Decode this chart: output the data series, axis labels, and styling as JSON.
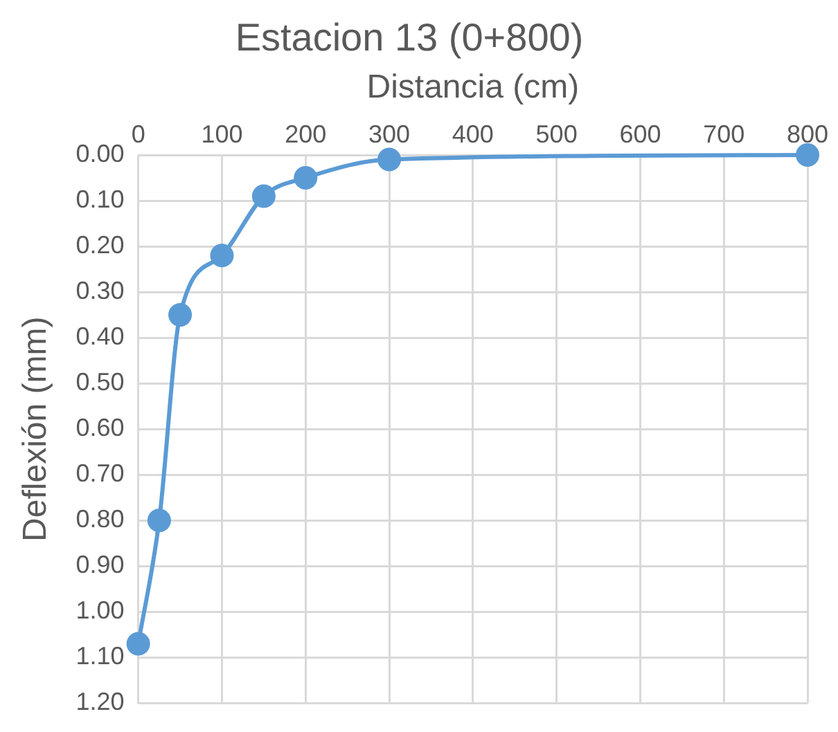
{
  "chart_data": {
    "type": "line",
    "title": "Estacion 13 (0+800)",
    "xlabel": "Distancia (cm)",
    "ylabel": "Deflexión (mm)",
    "x": [
      0,
      25,
      50,
      100,
      150,
      200,
      300,
      800
    ],
    "series": [
      {
        "color": "#5b9bd5",
        "values": [
          1.07,
          0.8,
          0.35,
          0.22,
          0.09,
          0.05,
          0.01,
          0.0
        ]
      }
    ],
    "xlim": [
      0,
      800
    ],
    "xticks": [
      0,
      100,
      200,
      300,
      400,
      500,
      600,
      700,
      800
    ],
    "ylim": [
      1.2,
      0
    ],
    "yticks": [
      {
        "value": 0,
        "label": "0.00"
      },
      {
        "value": 0.1,
        "label": "0.10"
      },
      {
        "value": 0.2,
        "label": "0.20"
      },
      {
        "value": 0.3,
        "label": "0.30"
      },
      {
        "value": 0.4,
        "label": "0.40"
      },
      {
        "value": 0.5,
        "label": "0.50"
      },
      {
        "value": 0.6,
        "label": "0.60"
      },
      {
        "value": 0.7,
        "label": "0.70"
      },
      {
        "value": 0.8,
        "label": "0.80"
      },
      {
        "value": 0.9,
        "label": "0.90"
      },
      {
        "value": 1.0,
        "label": "1.00"
      },
      {
        "value": 1.1,
        "label": "1.10"
      },
      {
        "value": 1.2,
        "label": "1.20"
      }
    ],
    "grid": true,
    "marker": "circle",
    "line_style": "solid",
    "legend": false
  }
}
